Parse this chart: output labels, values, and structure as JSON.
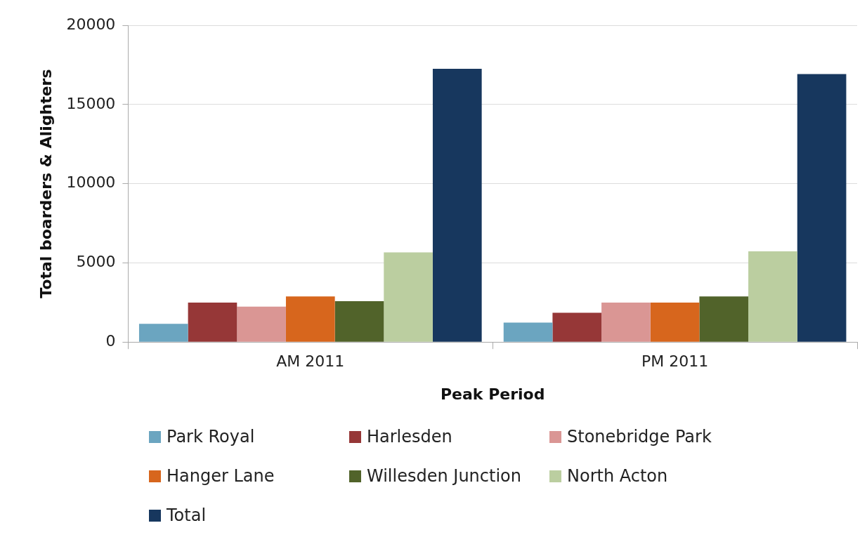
{
  "chart_data": {
    "type": "bar",
    "xlabel": "Peak Period",
    "ylabel": "Total boarders & Alighters",
    "categories": [
      "AM 2011",
      "PM 2011"
    ],
    "series": [
      {
        "name": "Park Royal",
        "color": "#6ba5c0",
        "values": [
          1150,
          1230
        ]
      },
      {
        "name": "Harlesden",
        "color": "#963737",
        "values": [
          2490,
          1850
        ]
      },
      {
        "name": "Stonebridge Park",
        "color": "#da9694",
        "values": [
          2240,
          2490
        ]
      },
      {
        "name": "Hanger Lane",
        "color": "#d7661d",
        "values": [
          2880,
          2490
        ]
      },
      {
        "name": "Willesden Junction",
        "color": "#51632a",
        "values": [
          2580,
          2880
        ]
      },
      {
        "name": "North Acton",
        "color": "#bbcea0",
        "values": [
          5660,
          5730
        ]
      },
      {
        "name": "Total",
        "color": "#17375e",
        "values": [
          17250,
          16920
        ]
      }
    ],
    "ylim": [
      0,
      20000
    ],
    "yticks": [
      0,
      5000,
      10000,
      15000,
      20000
    ],
    "grid": "y",
    "legend": "bottom"
  }
}
